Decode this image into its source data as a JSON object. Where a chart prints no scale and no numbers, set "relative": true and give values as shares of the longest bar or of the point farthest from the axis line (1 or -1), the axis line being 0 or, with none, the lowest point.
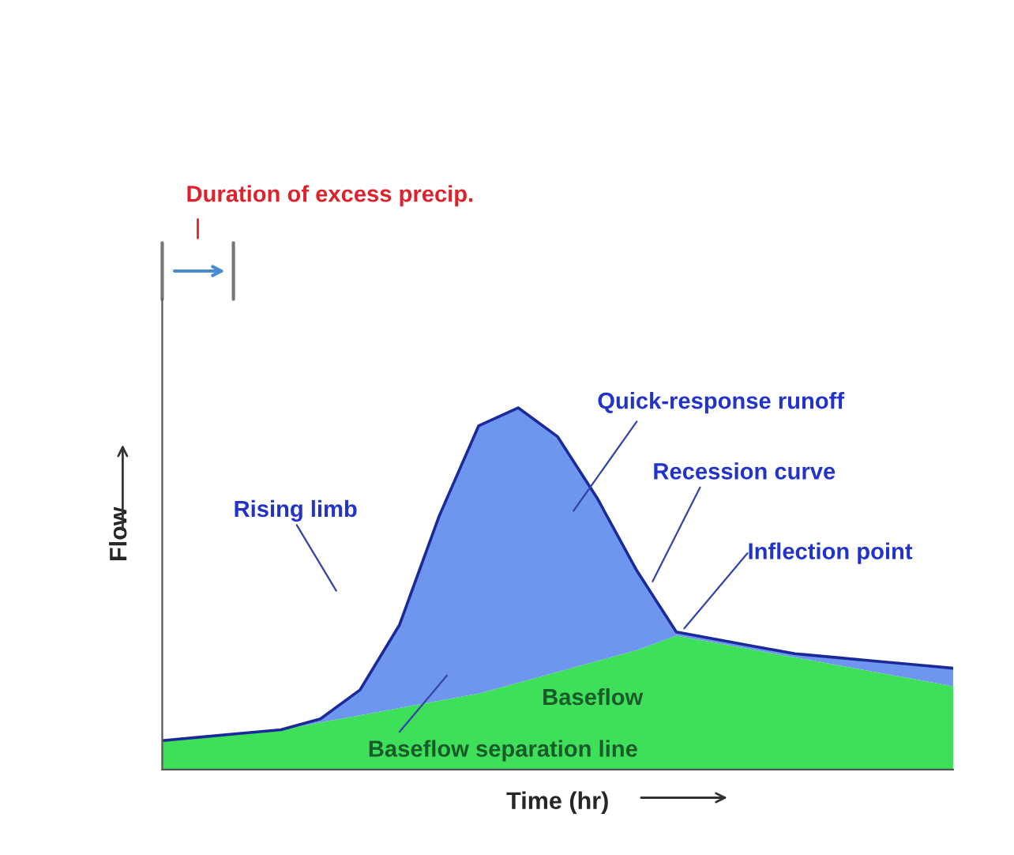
{
  "chart_data": {
    "type": "area",
    "stacked": true,
    "relative": true,
    "xlabel": "Time (hr)",
    "ylabel": "Flow",
    "categories": [
      null,
      null,
      null,
      null,
      null,
      null,
      null,
      null,
      null,
      null,
      null,
      null,
      null,
      null,
      null,
      null,
      null,
      null,
      null,
      null,
      null
    ],
    "series": [
      {
        "color": "#3ee05a",
        "values": [
          0.08,
          0.09,
          0.1,
          0.11,
          0.13,
          0.15,
          0.17,
          0.19,
          0.21,
          0.24,
          0.27,
          0.3,
          0.33,
          0.37,
          0.35,
          0.33,
          0.31,
          0.29,
          0.27,
          0.25,
          0.23
        ]
      },
      {
        "color": "#6e96ef",
        "values": [
          0,
          0,
          0,
          0,
          0.01,
          0.07,
          0.23,
          0.51,
          0.74,
          0.76,
          0.65,
          0.45,
          0.22,
          0.01,
          0.01,
          0.01,
          0.01,
          0.02,
          0.03,
          0.04,
          0.05
        ]
      }
    ],
    "annotations": [
      "Duration of excess precip.",
      "Rising limb",
      "Quick-response runoff",
      "Recession curve",
      "Inflection point",
      "Baseflow",
      "Baseflow separation line"
    ],
    "legend": false
  }
}
